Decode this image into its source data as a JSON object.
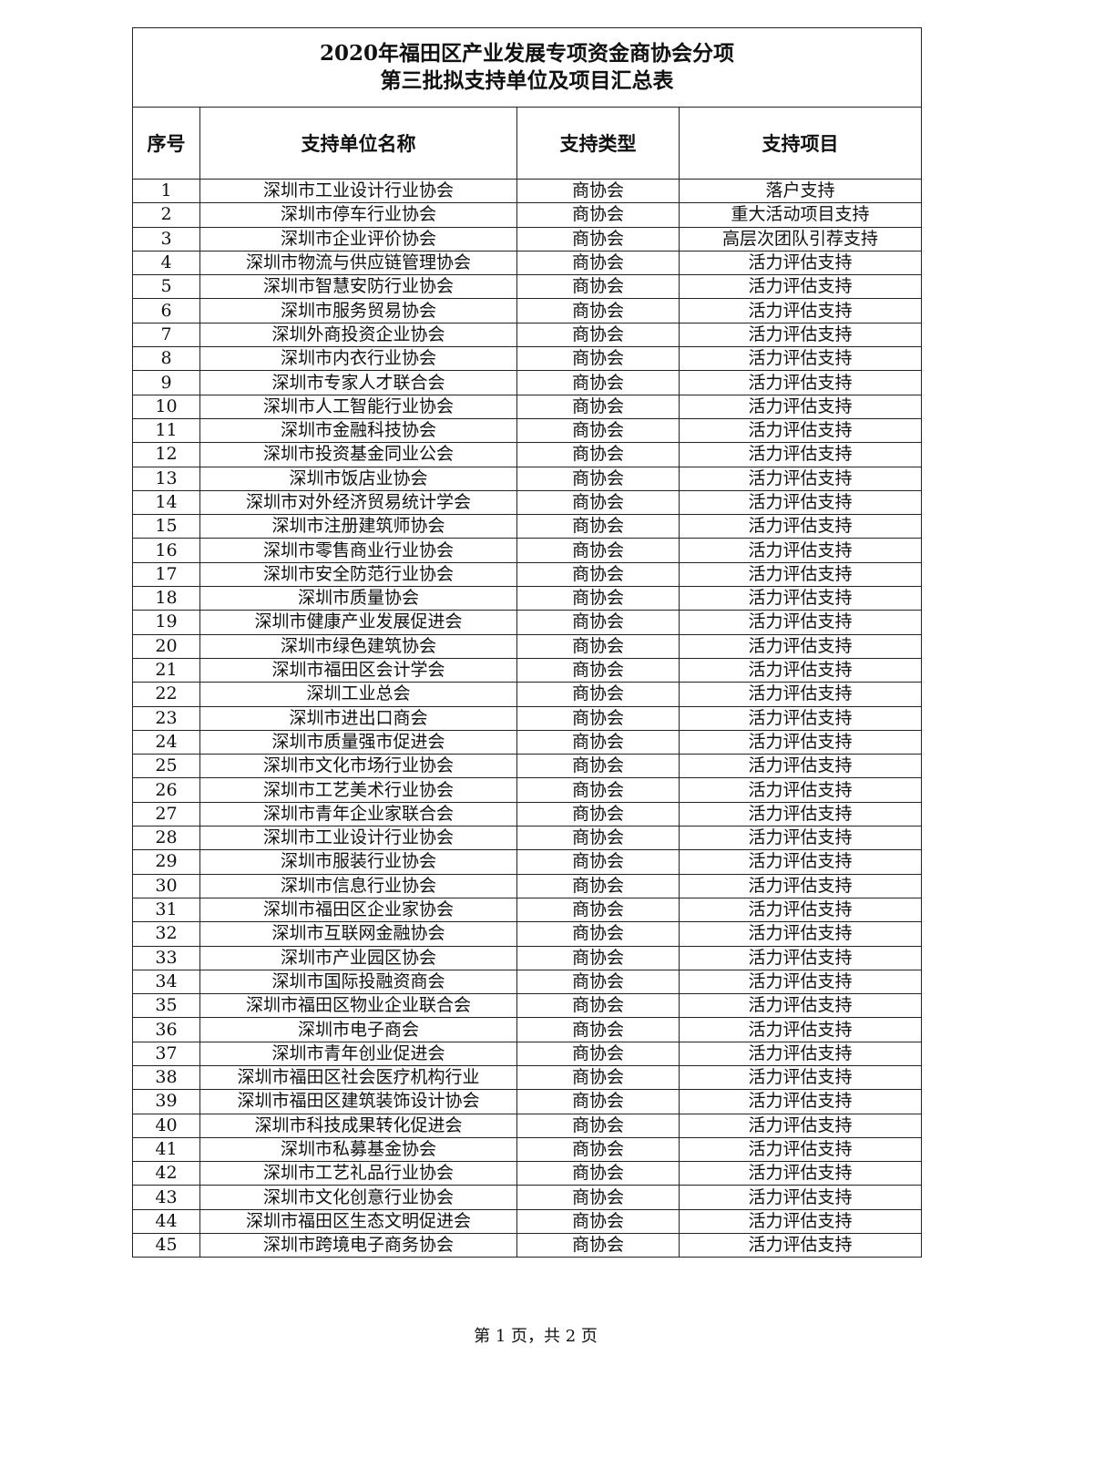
{
  "document": {
    "title_line1": "2020年福田区产业发展专项资金商协会分项",
    "title_line2": "第三批拟支持单位及项目汇总表",
    "headers": [
      "序号",
      "支持单位名称",
      "支持类型",
      "支持项目"
    ],
    "rows": [
      [
        "1",
        "深圳市工业设计行业协会",
        "商协会",
        "落户支持"
      ],
      [
        "2",
        "深圳市停车行业协会",
        "商协会",
        "重大活动项目支持"
      ],
      [
        "3",
        "深圳市企业评价协会",
        "商协会",
        "高层次团队引荐支持"
      ],
      [
        "4",
        "深圳市物流与供应链管理协会",
        "商协会",
        "活力评估支持"
      ],
      [
        "5",
        "深圳市智慧安防行业协会",
        "商协会",
        "活力评估支持"
      ],
      [
        "6",
        "深圳市服务贸易协会",
        "商协会",
        "活力评估支持"
      ],
      [
        "7",
        "深圳外商投资企业协会",
        "商协会",
        "活力评估支持"
      ],
      [
        "8",
        "深圳市内衣行业协会",
        "商协会",
        "活力评估支持"
      ],
      [
        "9",
        "深圳市专家人才联合会",
        "商协会",
        "活力评估支持"
      ],
      [
        "10",
        "深圳市人工智能行业协会",
        "商协会",
        "活力评估支持"
      ],
      [
        "11",
        "深圳市金融科技协会",
        "商协会",
        "活力评估支持"
      ],
      [
        "12",
        "深圳市投资基金同业公会",
        "商协会",
        "活力评估支持"
      ],
      [
        "13",
        "深圳市饭店业协会",
        "商协会",
        "活力评估支持"
      ],
      [
        "14",
        "深圳市对外经济贸易统计学会",
        "商协会",
        "活力评估支持"
      ],
      [
        "15",
        "深圳市注册建筑师协会",
        "商协会",
        "活力评估支持"
      ],
      [
        "16",
        "深圳市零售商业行业协会",
        "商协会",
        "活力评估支持"
      ],
      [
        "17",
        "深圳市安全防范行业协会",
        "商协会",
        "活力评估支持"
      ],
      [
        "18",
        "深圳市质量协会",
        "商协会",
        "活力评估支持"
      ],
      [
        "19",
        "深圳市健康产业发展促进会",
        "商协会",
        "活力评估支持"
      ],
      [
        "20",
        "深圳市绿色建筑协会",
        "商协会",
        "活力评估支持"
      ],
      [
        "21",
        "深圳市福田区会计学会",
        "商协会",
        "活力评估支持"
      ],
      [
        "22",
        "深圳工业总会",
        "商协会",
        "活力评估支持"
      ],
      [
        "23",
        "深圳市进出口商会",
        "商协会",
        "活力评估支持"
      ],
      [
        "24",
        "深圳市质量强市促进会",
        "商协会",
        "活力评估支持"
      ],
      [
        "25",
        "深圳市文化市场行业协会",
        "商协会",
        "活力评估支持"
      ],
      [
        "26",
        "深圳市工艺美术行业协会",
        "商协会",
        "活力评估支持"
      ],
      [
        "27",
        "深圳市青年企业家联合会",
        "商协会",
        "活力评估支持"
      ],
      [
        "28",
        "深圳市工业设计行业协会",
        "商协会",
        "活力评估支持"
      ],
      [
        "29",
        "深圳市服装行业协会",
        "商协会",
        "活力评估支持"
      ],
      [
        "30",
        "深圳市信息行业协会",
        "商协会",
        "活力评估支持"
      ],
      [
        "31",
        "深圳市福田区企业家协会",
        "商协会",
        "活力评估支持"
      ],
      [
        "32",
        "深圳市互联网金融协会",
        "商协会",
        "活力评估支持"
      ],
      [
        "33",
        "深圳市产业园区协会",
        "商协会",
        "活力评估支持"
      ],
      [
        "34",
        "深圳市国际投融资商会",
        "商协会",
        "活力评估支持"
      ],
      [
        "35",
        "深圳市福田区物业企业联合会",
        "商协会",
        "活力评估支持"
      ],
      [
        "36",
        "深圳市电子商会",
        "商协会",
        "活力评估支持"
      ],
      [
        "37",
        "深圳市青年创业促进会",
        "商协会",
        "活力评估支持"
      ],
      [
        "38",
        "深圳市福田区社会医疗机构行业",
        "商协会",
        "活力评估支持"
      ],
      [
        "39",
        "深圳市福田区建筑装饰设计协会",
        "商协会",
        "活力评估支持"
      ],
      [
        "40",
        "深圳市科技成果转化促进会",
        "商协会",
        "活力评估支持"
      ],
      [
        "41",
        "深圳市私募基金协会",
        "商协会",
        "活力评估支持"
      ],
      [
        "42",
        "深圳市工艺礼品行业协会",
        "商协会",
        "活力评估支持"
      ],
      [
        "43",
        "深圳市文化创意行业协会",
        "商协会",
        "活力评估支持"
      ],
      [
        "44",
        "深圳市福田区生态文明促进会",
        "商协会",
        "活力评估支持"
      ],
      [
        "45",
        "深圳市跨境电子商务协会",
        "商协会",
        "活力评估支持"
      ]
    ],
    "footer": "第 1 页，共 2 页"
  }
}
